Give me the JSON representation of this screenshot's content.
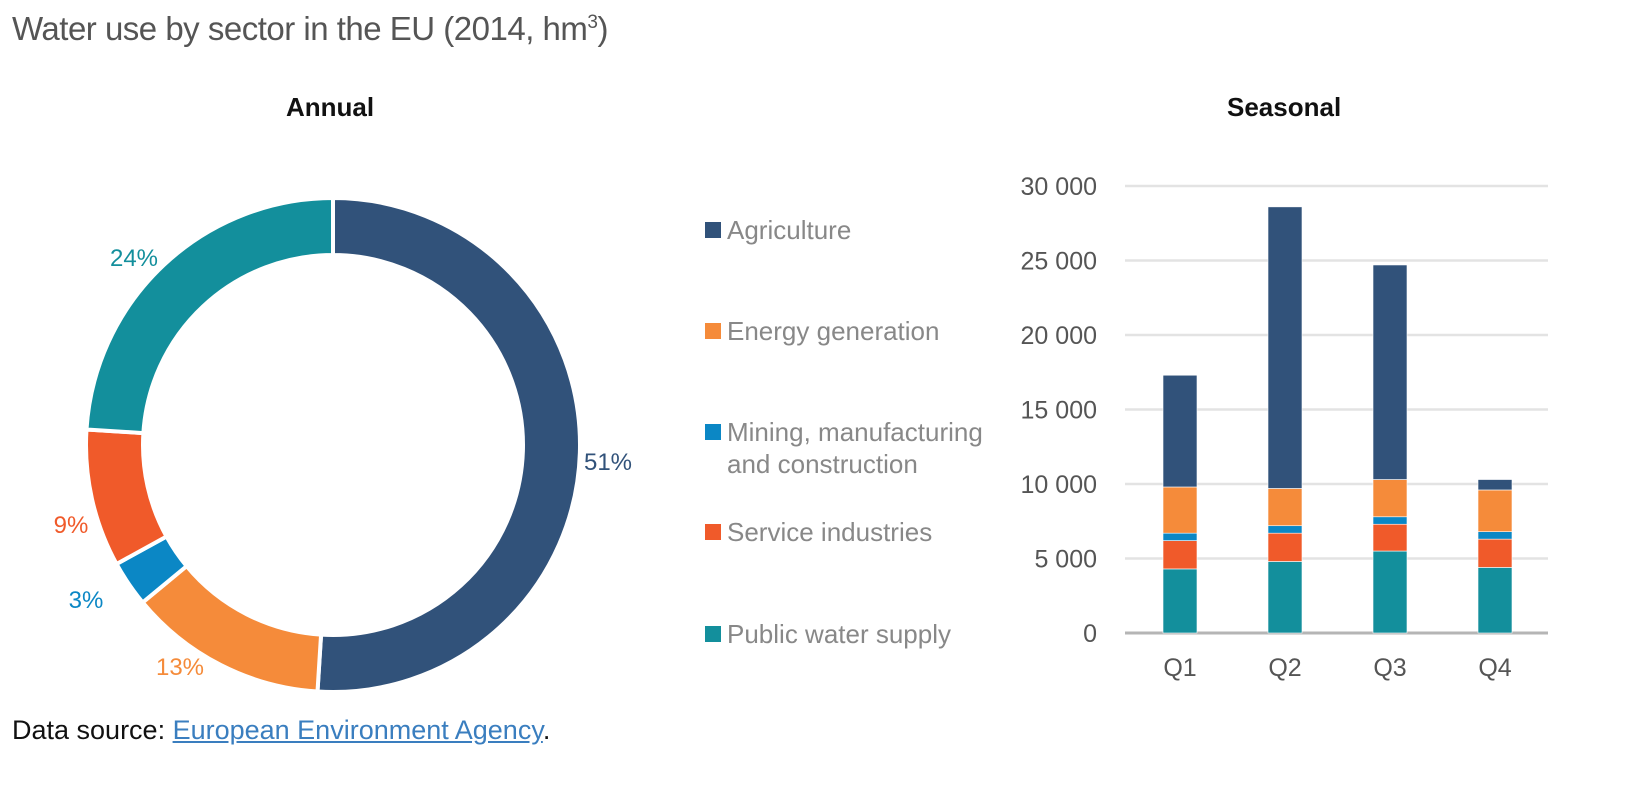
{
  "header": {
    "title": "Water use by sector in the EU (2014, hm",
    "title_sup": "3",
    "title_end": ")"
  },
  "annual": {
    "title": "Annual"
  },
  "seasonal": {
    "title": "Seasonal"
  },
  "legend": [
    {
      "label": "Agriculture",
      "color": "#31527a"
    },
    {
      "label": "Energy generation",
      "color": "#f58b3a"
    },
    {
      "label": "Mining, manufacturing",
      "label2": "and construction",
      "color": "#0b87c5"
    },
    {
      "label": "Service industries",
      "color": "#f05a2a"
    },
    {
      "label": "Public water supply",
      "color": "#138f9c"
    }
  ],
  "source": {
    "prefix": "Data source: ",
    "link": "European Environment Agency",
    "suffix": "."
  },
  "chart_data": [
    {
      "type": "pie",
      "title": "Annual",
      "variant": "donut",
      "categories": [
        "Agriculture",
        "Energy generation",
        "Mining, manufacturing and construction",
        "Service industries",
        "Public water supply"
      ],
      "values": [
        51,
        13,
        3,
        9,
        24
      ],
      "labels": [
        "51%",
        "13%",
        "3%",
        "9%",
        "24%"
      ],
      "colors": [
        "#31527a",
        "#f58b3a",
        "#0b87c5",
        "#f05a2a",
        "#138f9c"
      ],
      "start_angle": "12 o'clock, clockwise"
    },
    {
      "type": "bar",
      "stacked": true,
      "title": "Seasonal",
      "xlabel": "",
      "ylabel": "",
      "categories": [
        "Q1",
        "Q2",
        "Q3",
        "Q4"
      ],
      "ylim": [
        0,
        30000
      ],
      "yticks": [
        0,
        5000,
        10000,
        15000,
        20000,
        25000,
        30000
      ],
      "ytick_labels": [
        "0",
        "5 000",
        "10 000",
        "15 000",
        "20 000",
        "25 000",
        "30 000"
      ],
      "grid": true,
      "series": [
        {
          "name": "Public water supply",
          "color": "#138f9c",
          "values": [
            4300,
            4800,
            5500,
            4400
          ]
        },
        {
          "name": "Service industries",
          "color": "#f05a2a",
          "values": [
            1900,
            1900,
            1800,
            1900
          ]
        },
        {
          "name": "Mining, manufacturing and construction",
          "color": "#0b87c5",
          "values": [
            500,
            500,
            500,
            500
          ]
        },
        {
          "name": "Energy generation",
          "color": "#f58b3a",
          "values": [
            3100,
            2500,
            2500,
            2800
          ]
        },
        {
          "name": "Agriculture",
          "color": "#31527a",
          "values": [
            7500,
            18900,
            14400,
            700
          ]
        }
      ]
    }
  ]
}
